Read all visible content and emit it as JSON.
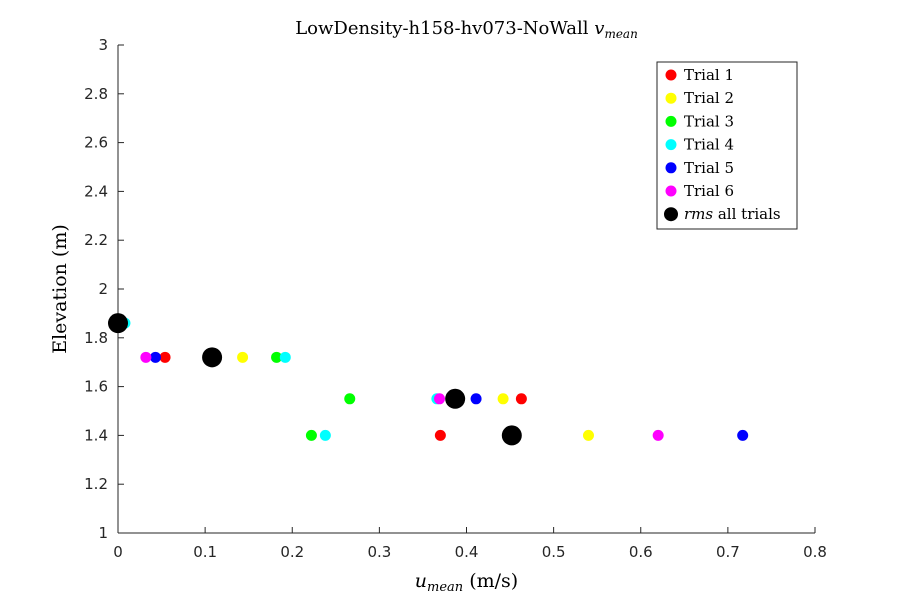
{
  "chart_data": {
    "type": "scatter",
    "title_main": "LowDensity-h158-hv073-NoWall ",
    "title_math": "v",
    "title_sub": "mean",
    "xlabel_math": "u",
    "xlabel_sub": "mean",
    "xlabel_unit": " (m/s)",
    "ylabel": "Elevation (m)",
    "xlim": [
      0,
      0.8
    ],
    "ylim": [
      1,
      3
    ],
    "xticks": [
      "0",
      "0.1",
      "0.2",
      "0.3",
      "0.4",
      "0.5",
      "0.6",
      "0.7",
      "0.8"
    ],
    "yticks": [
      "1",
      "1.2",
      "1.4",
      "1.6",
      "1.8",
      "2",
      "2.2",
      "2.4",
      "2.6",
      "2.8",
      "3"
    ],
    "grid": false,
    "legend_position": "top-right",
    "series": [
      {
        "name": "Trial 1",
        "color": "#ff0000",
        "points": [
          [
            0.054,
            1.72
          ],
          [
            0.463,
            1.55
          ],
          [
            0.37,
            1.4
          ]
        ]
      },
      {
        "name": "Trial 2",
        "color": "#ffff00",
        "points": [
          [
            0.143,
            1.72
          ],
          [
            0.442,
            1.55
          ],
          [
            0.54,
            1.4
          ]
        ]
      },
      {
        "name": "Trial 3",
        "color": "#00ff00",
        "points": [
          [
            0.182,
            1.72
          ],
          [
            0.266,
            1.55
          ],
          [
            0.222,
            1.4
          ]
        ]
      },
      {
        "name": "Trial 4",
        "color": "#00ffff",
        "points": [
          [
            0.008,
            1.86
          ],
          [
            0.192,
            1.72
          ],
          [
            0.366,
            1.55
          ],
          [
            0.238,
            1.4
          ]
        ]
      },
      {
        "name": "Trial 5",
        "color": "#0000ff",
        "points": [
          [
            0.043,
            1.72
          ],
          [
            0.411,
            1.55
          ],
          [
            0.717,
            1.4
          ]
        ]
      },
      {
        "name": "Trial 6",
        "color": "#ff00ff",
        "points": [
          [
            0.032,
            1.72
          ],
          [
            0.369,
            1.55
          ],
          [
            0.62,
            1.4
          ]
        ]
      }
    ],
    "rms": {
      "name_math": "rms",
      "name_rest": " all trials",
      "color": "#000000",
      "points": [
        [
          0.0,
          1.86
        ],
        [
          0.108,
          1.72
        ],
        [
          0.387,
          1.55
        ],
        [
          0.452,
          1.4
        ]
      ]
    }
  }
}
